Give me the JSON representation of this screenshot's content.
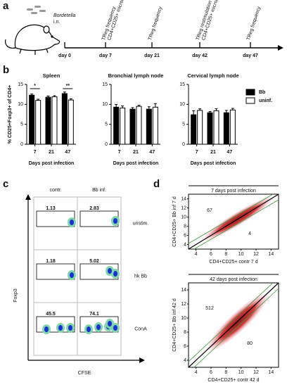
{
  "panel_a": {
    "letter": "a",
    "agent": "Bordetella",
    "route": "i.n.",
    "days": [
      "day 0",
      "day 7",
      "day 21",
      "day 42",
      "day 47"
    ],
    "events": [
      [
        "TReg frequency",
        "CD4+CD25+ microarray"
      ],
      [
        "TReg frequency"
      ],
      [
        "TReg restimulation",
        "CD4+CD25+ microarray"
      ],
      [
        "TReg frequency"
      ]
    ]
  },
  "panel_b": {
    "letter": "b"
  },
  "chart_data": [
    {
      "type": "bar",
      "title": "Spleen",
      "ylabel": "% CD25+Foxp3+ of CD4+",
      "xlabel": "Days post infection",
      "categories": [
        "7",
        "21",
        "47"
      ],
      "ylim": [
        0,
        15
      ],
      "yticks": [
        0,
        5,
        10,
        15
      ],
      "annotations": [
        "*",
        "**"
      ],
      "series": [
        {
          "name": "Bb",
          "color": "#000000",
          "values": [
            12.3,
            11.8,
            12.7
          ],
          "errors": [
            0.3,
            0.3,
            0.4
          ]
        },
        {
          "name": "uninf.",
          "color": "#ffffff",
          "values": [
            11.0,
            11.9,
            11.1
          ],
          "errors": [
            0.3,
            0.3,
            0.3
          ]
        }
      ]
    },
    {
      "type": "bar",
      "title": "Bronchial lymph node",
      "xlabel": "Days post infection",
      "categories": [
        "7",
        "21",
        "47"
      ],
      "ylim": [
        0,
        15
      ],
      "yticks": [
        0,
        5,
        10,
        15
      ],
      "series": [
        {
          "name": "Bb",
          "color": "#000000",
          "values": [
            9.3,
            8.8,
            8.8
          ],
          "errors": [
            0.7,
            0.4,
            0.6
          ]
        },
        {
          "name": "uninf.",
          "color": "#ffffff",
          "values": [
            9.1,
            9.5,
            9.3
          ],
          "errors": [
            0.5,
            0.3,
            0.9
          ]
        }
      ]
    },
    {
      "type": "bar",
      "title": "Cervical lymph node",
      "xlabel": "Days post infection",
      "categories": [
        "7",
        "21",
        "47"
      ],
      "ylim": [
        0,
        15
      ],
      "yticks": [
        0,
        5,
        10,
        15
      ],
      "series": [
        {
          "name": "Bb",
          "color": "#000000",
          "values": [
            7.4,
            7.9,
            7.9
          ],
          "errors": [
            1.0,
            0.3,
            0.6
          ]
        },
        {
          "name": "uninf.",
          "color": "#ffffff",
          "values": [
            8.5,
            8.4,
            8.6
          ],
          "errors": [
            0.4,
            0.5,
            0.4
          ]
        }
      ]
    }
  ],
  "panel_c": {
    "letter": "c",
    "columns": [
      "contr.",
      "Bb inf."
    ],
    "rows": [
      "unstim.",
      "hk Bb",
      "ConA"
    ],
    "values": [
      [
        1.13,
        2.83
      ],
      [
        1.18,
        5.02
      ],
      [
        45.5,
        74.1
      ]
    ],
    "y_axis": "Foxp3",
    "x_axis": "CFSE"
  },
  "panel_d": {
    "letter": "d",
    "plots": [
      {
        "title": "7 days post infection",
        "xlabel": "CD4+CD25+ contr 7 d",
        "ylabel": "CD4+CD25+ Bb inf 7 d",
        "xlim": [
          3,
          15
        ],
        "ylim": [
          3,
          15
        ],
        "xticks": [
          4,
          6,
          8,
          10,
          12,
          14
        ],
        "yticks": [
          4,
          6,
          8,
          10,
          12,
          14
        ],
        "up_count": 67,
        "down_count": 4
      },
      {
        "title": "42 days post infection",
        "xlabel": "CD4+CD25+ contr 42 d",
        "ylabel": "CD4+CD25+ Bb inf 42 d",
        "xlim": [
          3,
          15
        ],
        "ylim": [
          3,
          15
        ],
        "xticks": [
          4,
          6,
          8,
          10,
          12,
          14
        ],
        "yticks": [
          4,
          6,
          8,
          10,
          12,
          14
        ],
        "up_count": 512,
        "down_count": 80
      }
    ]
  }
}
